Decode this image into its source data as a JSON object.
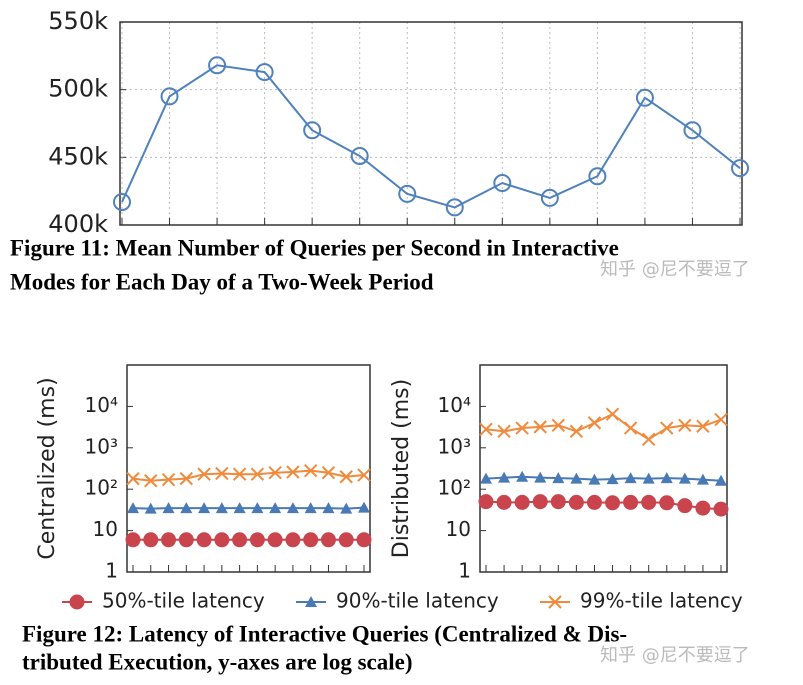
{
  "chart_data": [
    {
      "type": "line",
      "color": "#4f81bd",
      "marker": "circle",
      "grid": true,
      "categories": [
        null,
        null,
        null,
        null,
        null,
        null,
        null,
        null,
        null,
        null,
        null,
        null,
        null,
        null
      ],
      "values": [
        417000,
        495000,
        518000,
        513000,
        470000,
        451000,
        423000,
        413000,
        431000,
        420000,
        436000,
        494000,
        470000,
        442000
      ],
      "ylim": [
        400000,
        550000
      ],
      "yticks": [
        {
          "value": 400000,
          "label": "400k"
        },
        {
          "value": 450000,
          "label": "450k"
        },
        {
          "value": 500000,
          "label": "500k"
        },
        {
          "value": 550000,
          "label": "550k"
        }
      ]
    },
    {
      "type": "line",
      "log_scale": true,
      "ylabel": "Centralized (ms)",
      "categories": [
        null,
        null,
        null,
        null,
        null,
        null,
        null,
        null,
        null,
        null,
        null,
        null,
        null,
        null
      ],
      "ylim": [
        1,
        100000
      ],
      "yticks": [
        1,
        10,
        {
          "value": 100,
          "label": "10²"
        },
        {
          "value": 1000,
          "label": "10³"
        },
        {
          "value": 10000,
          "label": "10⁴"
        }
      ],
      "series": [
        {
          "name": "50%-tile latency",
          "color": "#c9444d",
          "marker": "circle",
          "values": [
            6,
            6,
            6,
            6,
            6,
            6,
            6,
            6,
            6,
            6,
            6,
            6,
            6,
            6
          ]
        },
        {
          "name": "90%-tile latency",
          "color": "#4a7ab5",
          "marker": "triangle",
          "values": [
            35,
            34,
            35,
            35,
            35,
            35,
            35,
            35,
            35,
            35,
            35,
            35,
            34,
            36
          ]
        },
        {
          "name": "99%-tile latency",
          "color": "#f08a3c",
          "marker": "x",
          "values": [
            180,
            160,
            170,
            180,
            230,
            240,
            230,
            230,
            250,
            260,
            280,
            250,
            200,
            220
          ]
        }
      ]
    },
    {
      "type": "line",
      "log_scale": true,
      "ylabel": "Distributed (ms)",
      "categories": [
        null,
        null,
        null,
        null,
        null,
        null,
        null,
        null,
        null,
        null,
        null,
        null,
        null,
        null
      ],
      "ylim": [
        1,
        100000
      ],
      "yticks": [
        1,
        10,
        {
          "value": 100,
          "label": "10²"
        },
        {
          "value": 1000,
          "label": "10³"
        },
        {
          "value": 10000,
          "label": "10⁴"
        }
      ],
      "series": [
        {
          "color": "#c9444d",
          "marker": "circle",
          "values": [
            50,
            48,
            48,
            50,
            50,
            48,
            48,
            47,
            48,
            48,
            47,
            40,
            35,
            33
          ]
        },
        {
          "color": "#4a7ab5",
          "marker": "triangle",
          "values": [
            180,
            190,
            200,
            190,
            185,
            180,
            170,
            175,
            185,
            180,
            185,
            180,
            170,
            160
          ]
        },
        {
          "color": "#f08a3c",
          "marker": "x",
          "values": [
            2800,
            2500,
            3000,
            3200,
            3500,
            2500,
            4000,
            6500,
            3000,
            1600,
            3000,
            3500,
            3300,
            4800
          ]
        }
      ]
    }
  ],
  "captions": {
    "figure_11": [
      "Figure 11: Mean Number of Queries per Second in Interactive",
      "Modes for Each Day of a Two-Week Period"
    ],
    "figure_12": [
      "Figure 12: Latency of Interactive Queries (Centralized & Dis-",
      "tributed Execution, y-axes are log scale)"
    ]
  },
  "watermark": "知乎 @尼不要逗了"
}
